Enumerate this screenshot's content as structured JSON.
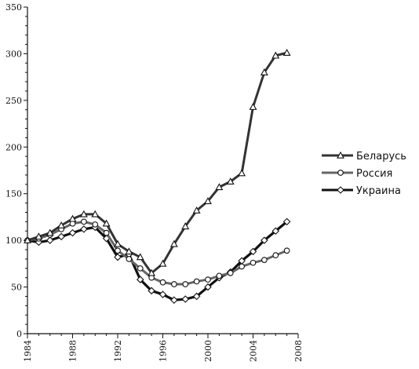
{
  "chart_data": {
    "type": "line",
    "title": "",
    "xlabel": "",
    "ylabel": "",
    "xlim": [
      1984,
      2008
    ],
    "ylim": [
      0,
      350
    ],
    "x_ticks": [
      "1984",
      "1988",
      "1992",
      "1996",
      "2000",
      "2004",
      "2008"
    ],
    "y_ticks": [
      "0",
      "50",
      "100",
      "150",
      "200",
      "250",
      "300",
      "350"
    ],
    "grid": false,
    "legend_position": "right",
    "x": [
      1984,
      1985,
      1986,
      1987,
      1988,
      1989,
      1990,
      1991,
      1992,
      1993,
      1994,
      1995,
      1996,
      1997,
      1998,
      1999,
      2000,
      2001,
      2002,
      2003,
      2004,
      2005,
      2006,
      2007
    ],
    "series": [
      {
        "name": "Беларусь",
        "marker": "triangle",
        "line_color": "#333333",
        "values": [
          100,
          104,
          108,
          116,
          123,
          128,
          128,
          118,
          96,
          88,
          82,
          65,
          75,
          96,
          115,
          132,
          142,
          157,
          163,
          172,
          243,
          280,
          298,
          301
        ]
      },
      {
        "name": "Россия",
        "marker": "circle",
        "line_color": "#666666",
        "values": [
          100,
          102,
          106,
          112,
          118,
          120,
          117,
          108,
          89,
          80,
          70,
          60,
          55,
          53,
          53,
          56,
          58,
          62,
          65,
          72,
          76,
          79,
          84,
          89
        ]
      },
      {
        "name": "Украина",
        "marker": "diamond",
        "line_color": "#111111",
        "values": [
          100,
          98,
          100,
          104,
          108,
          112,
          114,
          102,
          82,
          85,
          58,
          46,
          42,
          36,
          37,
          40,
          50,
          60,
          66,
          78,
          88,
          100,
          110,
          120
        ]
      }
    ]
  }
}
